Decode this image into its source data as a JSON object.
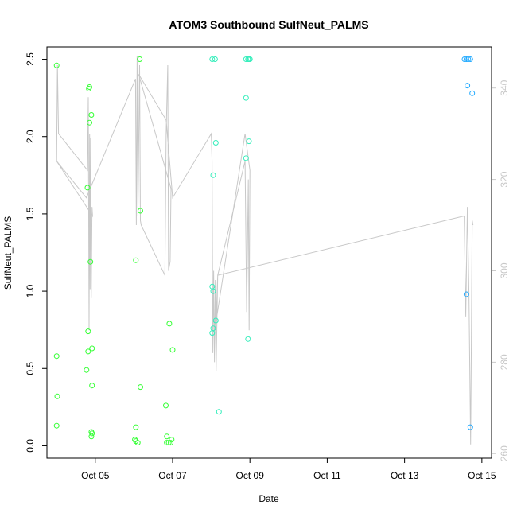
{
  "chart_data": {
    "type": "scatter",
    "title": "ATOM3 Southbound SulfNeut_PALMS",
    "xlabel": "Date",
    "ylabel": "SulfNeut_PALMS",
    "x_ticks": [
      "Oct 05",
      "Oct 07",
      "Oct 09",
      "Oct 11",
      "Oct 13",
      "Oct 15"
    ],
    "y_ticks": [
      "0.0",
      "0.5",
      "1.0",
      "1.5",
      "2.0",
      "2.5"
    ],
    "y2_ticks": [
      "260",
      "280",
      "300",
      "320",
      "340"
    ],
    "xlim": [
      "2017-10-03T18:00",
      "2017-10-15T06:00"
    ],
    "ylim": [
      -0.08,
      2.58
    ],
    "y2lim": [
      259,
      349
    ],
    "colors": {
      "marker_early": "#33ff33",
      "marker_mid": "#33eebb",
      "marker_late": "#22aaff",
      "line": "#c8c8c8"
    },
    "points": [
      {
        "x": "2017-10-04T00:00",
        "y": 2.46
      },
      {
        "x": "2017-10-04T00:00",
        "y": 0.58
      },
      {
        "x": "2017-10-04T00:24",
        "y": 0.32
      },
      {
        "x": "2017-10-04T00:00",
        "y": 0.13
      },
      {
        "x": "2017-10-04T20:00",
        "y": 2.31
      },
      {
        "x": "2017-10-04T20:24",
        "y": 2.32
      },
      {
        "x": "2017-10-04T21:36",
        "y": 2.14
      },
      {
        "x": "2017-10-04T20:24",
        "y": 2.09
      },
      {
        "x": "2017-10-04T19:12",
        "y": 1.67
      },
      {
        "x": "2017-10-04T21:00",
        "y": 1.19
      },
      {
        "x": "2017-10-04T19:36",
        "y": 0.74
      },
      {
        "x": "2017-10-04T22:00",
        "y": 0.63
      },
      {
        "x": "2017-10-04T19:36",
        "y": 0.61
      },
      {
        "x": "2017-10-04T18:36",
        "y": 0.49
      },
      {
        "x": "2017-10-04T22:00",
        "y": 0.39
      },
      {
        "x": "2017-10-04T21:36",
        "y": 0.09
      },
      {
        "x": "2017-10-04T22:00",
        "y": 0.08
      },
      {
        "x": "2017-10-04T21:36",
        "y": 0.06
      },
      {
        "x": "2017-10-06T03:36",
        "y": 2.5
      },
      {
        "x": "2017-10-06T04:00",
        "y": 1.52
      },
      {
        "x": "2017-10-06T01:12",
        "y": 1.2
      },
      {
        "x": "2017-10-06T04:00",
        "y": 0.38
      },
      {
        "x": "2017-10-06T01:12",
        "y": 0.12
      },
      {
        "x": "2017-10-06T00:36",
        "y": 0.04
      },
      {
        "x": "2017-10-06T01:12",
        "y": 0.03
      },
      {
        "x": "2017-10-06T02:24",
        "y": 0.02
      },
      {
        "x": "2017-10-06T22:00",
        "y": 0.79
      },
      {
        "x": "2017-10-07T00:00",
        "y": 0.62
      },
      {
        "x": "2017-10-06T19:48",
        "y": 0.26
      },
      {
        "x": "2017-10-06T20:24",
        "y": 0.06
      },
      {
        "x": "2017-10-06T23:24",
        "y": 0.04
      },
      {
        "x": "2017-10-06T20:24",
        "y": 0.02
      },
      {
        "x": "2017-10-06T21:36",
        "y": 0.02
      },
      {
        "x": "2017-10-06T22:48",
        "y": 0.02
      },
      {
        "x": "2017-10-08T00:36",
        "y": 2.5
      },
      {
        "x": "2017-10-08T02:24",
        "y": 2.5
      },
      {
        "x": "2017-10-08T02:48",
        "y": 1.96
      },
      {
        "x": "2017-10-08T01:12",
        "y": 1.75
      },
      {
        "x": "2017-10-08T00:36",
        "y": 1.03
      },
      {
        "x": "2017-10-08T01:12",
        "y": 1.0
      },
      {
        "x": "2017-10-08T02:48",
        "y": 0.81
      },
      {
        "x": "2017-10-08T01:12",
        "y": 0.76
      },
      {
        "x": "2017-10-08T00:36",
        "y": 0.73
      },
      {
        "x": "2017-10-08T04:48",
        "y": 0.22
      },
      {
        "x": "2017-10-08T21:36",
        "y": 2.5
      },
      {
        "x": "2017-10-08T22:48",
        "y": 2.5
      },
      {
        "x": "2017-10-08T23:24",
        "y": 2.5
      },
      {
        "x": "2017-10-09T00:00",
        "y": 2.5
      },
      {
        "x": "2017-10-08T21:36",
        "y": 2.25
      },
      {
        "x": "2017-10-08T23:24",
        "y": 1.97
      },
      {
        "x": "2017-10-08T21:36",
        "y": 1.86
      },
      {
        "x": "2017-10-08T22:48",
        "y": 0.69
      },
      {
        "x": "2017-10-14T13:12",
        "y": 2.5
      },
      {
        "x": "2017-10-14T14:24",
        "y": 2.5
      },
      {
        "x": "2017-10-14T15:36",
        "y": 2.5
      },
      {
        "x": "2017-10-14T16:48",
        "y": 2.5
      },
      {
        "x": "2017-10-14T15:00",
        "y": 2.33
      },
      {
        "x": "2017-10-14T18:00",
        "y": 2.28
      },
      {
        "x": "2017-10-14T14:24",
        "y": 0.98
      },
      {
        "x": "2017-10-14T16:48",
        "y": 0.12
      }
    ],
    "secondary_line": [
      {
        "x": "2017-10-04T00:00",
        "y2": 324
      },
      {
        "x": "2017-10-04T00:30",
        "y2": 345
      },
      {
        "x": "2017-10-04T01:12",
        "y2": 330
      },
      {
        "x": "2017-10-04T19:12",
        "y2": 322
      },
      {
        "x": "2017-10-04T19:40",
        "y2": 338
      },
      {
        "x": "2017-10-04T20:10",
        "y2": 287
      },
      {
        "x": "2017-10-04T20:30",
        "y2": 330
      },
      {
        "x": "2017-10-04T20:50",
        "y2": 296
      },
      {
        "x": "2017-10-04T21:10",
        "y2": 329
      },
      {
        "x": "2017-10-04T21:30",
        "y2": 294
      },
      {
        "x": "2017-10-04T22:00",
        "y2": 314
      },
      {
        "x": "2017-10-04T22:20",
        "y2": 312
      },
      {
        "x": "2017-10-04T00:00",
        "y2": 324
      },
      {
        "x": "2017-10-04T18:30",
        "y2": 316
      },
      {
        "x": "2017-10-06T01:00",
        "y2": 342
      },
      {
        "x": "2017-10-06T01:30",
        "y2": 310
      },
      {
        "x": "2017-10-06T02:00",
        "y2": 347
      },
      {
        "x": "2017-10-06T02:30",
        "y2": 312
      },
      {
        "x": "2017-10-06T03:30",
        "y2": 345
      },
      {
        "x": "2017-10-06T04:00",
        "y2": 311
      },
      {
        "x": "2017-10-06T04:30",
        "y2": 310
      },
      {
        "x": "2017-10-06T19:12",
        "y2": 299
      },
      {
        "x": "2017-10-06T20:00",
        "y2": 330
      },
      {
        "x": "2017-10-06T21:00",
        "y2": 345
      },
      {
        "x": "2017-10-06T21:30",
        "y2": 300
      },
      {
        "x": "2017-10-06T22:30",
        "y2": 302
      },
      {
        "x": "2017-10-06T23:00",
        "y2": 318
      },
      {
        "x": "2017-10-06T03:00",
        "y2": 343
      },
      {
        "x": "2017-10-06T20:00",
        "y2": 333
      },
      {
        "x": "2017-10-07T00:00",
        "y2": 316
      },
      {
        "x": "2017-10-08T00:00",
        "y2": 330
      },
      {
        "x": "2017-10-08T00:30",
        "y2": 324
      },
      {
        "x": "2017-10-08T01:00",
        "y2": 282
      },
      {
        "x": "2017-10-08T01:30",
        "y2": 300
      },
      {
        "x": "2017-10-08T02:00",
        "y2": 280
      },
      {
        "x": "2017-10-08T02:30",
        "y2": 298
      },
      {
        "x": "2017-10-08T03:00",
        "y2": 278
      },
      {
        "x": "2017-10-08T04:00",
        "y2": 299
      },
      {
        "x": "2017-10-08T21:00",
        "y2": 324
      },
      {
        "x": "2017-10-08T22:00",
        "y2": 291
      },
      {
        "x": "2017-10-08T23:00",
        "y2": 320
      },
      {
        "x": "2017-10-08T23:30",
        "y2": 287
      },
      {
        "x": "2017-10-09T00:00",
        "y2": 322
      },
      {
        "x": "2017-10-08T21:00",
        "y2": 330
      },
      {
        "x": "2017-10-08T03:00",
        "y2": 289
      },
      {
        "x": "2017-10-08T04:00",
        "y2": 299
      },
      {
        "x": "2017-10-14T13:00",
        "y2": 312
      },
      {
        "x": "2017-10-14T14:00",
        "y2": 290
      },
      {
        "x": "2017-10-14T15:00",
        "y2": 314
      },
      {
        "x": "2017-10-14T16:00",
        "y2": 295
      },
      {
        "x": "2017-10-14T17:00",
        "y2": 262
      },
      {
        "x": "2017-10-14T18:00",
        "y2": 311
      },
      {
        "x": "2017-10-14T18:30",
        "y2": 310
      }
    ]
  }
}
